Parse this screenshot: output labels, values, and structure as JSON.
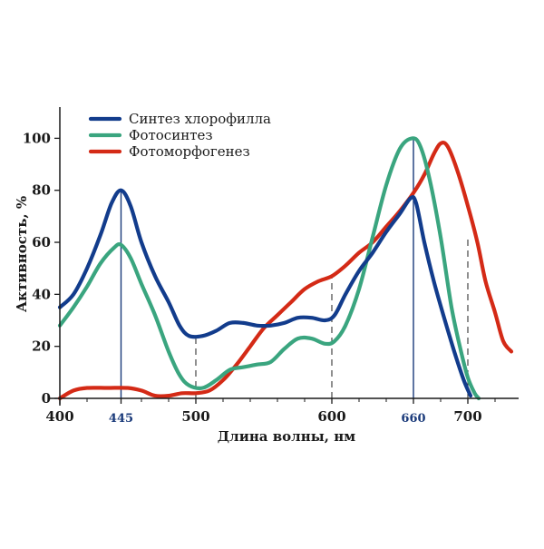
{
  "chart_data": {
    "type": "line",
    "xlabel": "Длина волны, нм",
    "ylabel": "Активность, %",
    "xlim": [
      400,
      740
    ],
    "ylim": [
      0,
      112
    ],
    "x_ticks": [
      {
        "value": 400,
        "label": "400",
        "accent": false
      },
      {
        "value": 445,
        "label": "445",
        "accent": true
      },
      {
        "value": 500,
        "label": "500",
        "accent": false
      },
      {
        "value": 600,
        "label": "600",
        "accent": false
      },
      {
        "value": 660,
        "label": "660",
        "accent": true
      },
      {
        "value": 700,
        "label": "700",
        "accent": false
      }
    ],
    "y_ticks": [
      {
        "value": 0,
        "label": "0"
      },
      {
        "value": 20,
        "label": "20"
      },
      {
        "value": 40,
        "label": "40"
      },
      {
        "value": 60,
        "label": "60"
      },
      {
        "value": 80,
        "label": "80"
      },
      {
        "value": 100,
        "label": "100"
      }
    ],
    "reference_lines": [
      {
        "x": 445,
        "style": "solid",
        "color": "#1a3a7a",
        "to_y": 80
      },
      {
        "x": 500,
        "style": "dashed",
        "color": "#333333",
        "to_y": 23
      },
      {
        "x": 600,
        "style": "dashed",
        "color": "#333333",
        "to_y": 47
      },
      {
        "x": 660,
        "style": "solid",
        "color": "#1a3a7a",
        "to_y": 100
      },
      {
        "x": 700,
        "style": "dashed",
        "color": "#333333",
        "to_y": 62
      }
    ],
    "legend_position": "top-left",
    "grid": false,
    "series": [
      {
        "name": "Синтез хлорофилла",
        "color": "#123c8c",
        "points": [
          [
            400,
            35
          ],
          [
            410,
            40
          ],
          [
            420,
            50
          ],
          [
            430,
            63
          ],
          [
            438,
            75
          ],
          [
            445,
            80
          ],
          [
            452,
            74
          ],
          [
            460,
            60
          ],
          [
            470,
            47
          ],
          [
            480,
            37
          ],
          [
            488,
            28
          ],
          [
            495,
            24
          ],
          [
            505,
            24
          ],
          [
            515,
            26
          ],
          [
            525,
            29
          ],
          [
            535,
            29
          ],
          [
            545,
            28
          ],
          [
            555,
            28
          ],
          [
            565,
            29
          ],
          [
            575,
            31
          ],
          [
            585,
            31
          ],
          [
            595,
            30
          ],
          [
            602,
            32
          ],
          [
            610,
            40
          ],
          [
            620,
            49
          ],
          [
            630,
            56
          ],
          [
            640,
            64
          ],
          [
            650,
            71
          ],
          [
            658,
            77
          ],
          [
            662,
            75
          ],
          [
            668,
            60
          ],
          [
            675,
            45
          ],
          [
            682,
            32
          ],
          [
            690,
            18
          ],
          [
            697,
            7
          ],
          [
            702,
            1
          ]
        ]
      },
      {
        "name": "Фотосинтез",
        "color": "#3aa57f",
        "points": [
          [
            400,
            28
          ],
          [
            410,
            35
          ],
          [
            420,
            43
          ],
          [
            430,
            52
          ],
          [
            440,
            58
          ],
          [
            445,
            59
          ],
          [
            452,
            54
          ],
          [
            460,
            44
          ],
          [
            470,
            32
          ],
          [
            480,
            18
          ],
          [
            488,
            9
          ],
          [
            495,
            5
          ],
          [
            505,
            4
          ],
          [
            515,
            7
          ],
          [
            525,
            11
          ],
          [
            535,
            12
          ],
          [
            545,
            13
          ],
          [
            555,
            14
          ],
          [
            565,
            19
          ],
          [
            575,
            23
          ],
          [
            585,
            23
          ],
          [
            595,
            21
          ],
          [
            602,
            22
          ],
          [
            610,
            28
          ],
          [
            620,
            42
          ],
          [
            630,
            62
          ],
          [
            640,
            82
          ],
          [
            650,
            96
          ],
          [
            659,
            100
          ],
          [
            665,
            97
          ],
          [
            672,
            84
          ],
          [
            680,
            62
          ],
          [
            688,
            35
          ],
          [
            695,
            18
          ],
          [
            700,
            8
          ],
          [
            705,
            2
          ],
          [
            708,
            0
          ]
        ]
      },
      {
        "name": "Фотоморфогенез",
        "color": "#d42a16",
        "points": [
          [
            400,
            0
          ],
          [
            410,
            3
          ],
          [
            420,
            4
          ],
          [
            435,
            4
          ],
          [
            450,
            4
          ],
          [
            460,
            3
          ],
          [
            470,
            1
          ],
          [
            480,
            1
          ],
          [
            490,
            2
          ],
          [
            500,
            2
          ],
          [
            510,
            3
          ],
          [
            520,
            7
          ],
          [
            530,
            13
          ],
          [
            540,
            20
          ],
          [
            550,
            27
          ],
          [
            560,
            32
          ],
          [
            570,
            37
          ],
          [
            580,
            42
          ],
          [
            590,
            45
          ],
          [
            600,
            47
          ],
          [
            610,
            51
          ],
          [
            620,
            56
          ],
          [
            630,
            60
          ],
          [
            640,
            66
          ],
          [
            650,
            72
          ],
          [
            660,
            79
          ],
          [
            668,
            86
          ],
          [
            675,
            94
          ],
          [
            680,
            98
          ],
          [
            685,
            97
          ],
          [
            692,
            88
          ],
          [
            700,
            74
          ],
          [
            707,
            60
          ],
          [
            713,
            45
          ],
          [
            720,
            33
          ],
          [
            726,
            22
          ],
          [
            732,
            18
          ]
        ]
      }
    ]
  }
}
